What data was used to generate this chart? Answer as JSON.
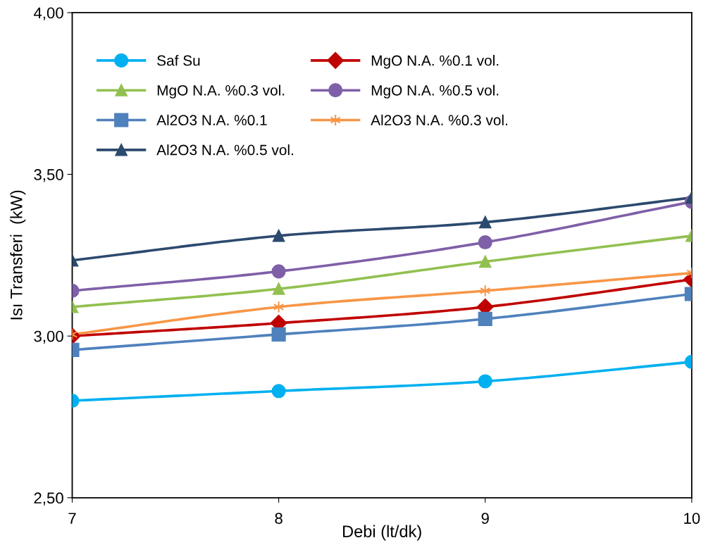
{
  "chart_data": {
    "type": "line",
    "xlabel": "Debi (lt/dk)",
    "ylabel": "Isı Transferi  (kW)",
    "x": [
      7,
      8,
      9,
      10
    ],
    "xlim": [
      7,
      10
    ],
    "xticks": [
      7,
      8,
      9,
      10
    ],
    "ylim": [
      2.5,
      4.0
    ],
    "yticks": [
      {
        "value": 2.5,
        "label": "2,50"
      },
      {
        "value": 3.0,
        "label": "3,00"
      },
      {
        "value": 3.5,
        "label": "3,50"
      },
      {
        "value": 4.0,
        "label": "4,00"
      }
    ],
    "grid": false,
    "legend": "top left",
    "line_style": "solid",
    "series": [
      {
        "name": "Saf Su",
        "color": "#00b0f0",
        "marker": "circle",
        "values": [
          2.8,
          2.83,
          2.86,
          2.92
        ]
      },
      {
        "name": "MgO N.A. %0.1 vol.",
        "color": "#c00000",
        "marker": "diamond",
        "values": [
          3.0,
          3.04,
          3.09,
          3.175
        ]
      },
      {
        "name": "MgO N.A. %0.3 vol.",
        "color": "#92c050",
        "marker": "triangle",
        "values": [
          3.09,
          3.146,
          3.23,
          3.31
        ]
      },
      {
        "name": "MgO N.A. %0.5 vol.",
        "color": "#7f5fa8",
        "marker": "circle",
        "values": [
          3.14,
          3.2,
          3.29,
          3.415
        ]
      },
      {
        "name": "Al2O3 N.A. %0.1",
        "color": "#4f81bd",
        "marker": "square",
        "values": [
          2.957,
          3.005,
          3.053,
          3.13
        ]
      },
      {
        "name": "Al2O3 N.A. %0.3 vol.",
        "color": "#f79646",
        "marker": "cross",
        "values": [
          3.005,
          3.09,
          3.14,
          3.195
        ]
      },
      {
        "name": "Al2O3 N.A. %0.5 vol.",
        "color": "#2c4a6e",
        "marker": "triangle",
        "values": [
          3.234,
          3.31,
          3.352,
          3.428
        ]
      }
    ]
  }
}
